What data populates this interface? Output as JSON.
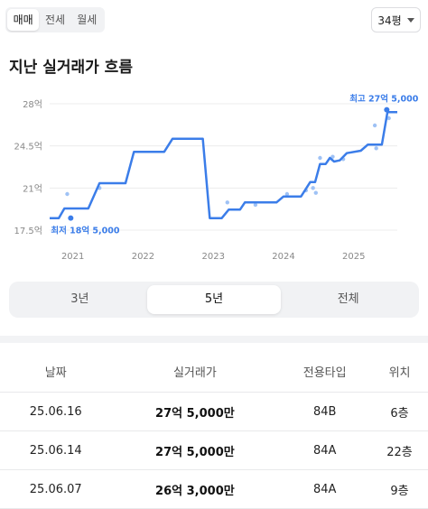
{
  "deal_tabs": [
    "매매",
    "전세",
    "월세"
  ],
  "active_deal_tab": 0,
  "size_select": {
    "value": "34평"
  },
  "section_title": "지난 실거래가 흐름",
  "chart_data": {
    "type": "line",
    "ylabels": [
      "28억",
      "24.5억",
      "21억",
      "17.5억"
    ],
    "yticks": [
      28,
      24.5,
      21,
      17.5
    ],
    "ylim": [
      17.5,
      28
    ],
    "xlabels": [
      "2021",
      "2022",
      "2023",
      "2024",
      "2025"
    ],
    "xticks": [
      2021,
      2022,
      2023,
      2024,
      2025
    ],
    "xlim": [
      2020.67,
      2025.62
    ],
    "grid": true,
    "line_color": "#3b7de9",
    "point_color": "#9fc2f5",
    "trend": [
      [
        2020.67,
        18.5
      ],
      [
        2020.8,
        18.5
      ],
      [
        2020.88,
        19.3
      ],
      [
        2021.22,
        19.3
      ],
      [
        2021.38,
        21.4
      ],
      [
        2021.75,
        21.4
      ],
      [
        2021.87,
        24.0
      ],
      [
        2022.3,
        24.0
      ],
      [
        2022.42,
        25.1
      ],
      [
        2022.85,
        25.1
      ],
      [
        2022.95,
        18.5
      ],
      [
        2023.12,
        18.5
      ],
      [
        2023.22,
        19.2
      ],
      [
        2023.38,
        19.2
      ],
      [
        2023.45,
        19.8
      ],
      [
        2023.9,
        19.8
      ],
      [
        2024.0,
        20.3
      ],
      [
        2024.25,
        20.3
      ],
      [
        2024.38,
        21.5
      ],
      [
        2024.45,
        21.5
      ],
      [
        2024.52,
        23.0
      ],
      [
        2024.6,
        23.0
      ],
      [
        2024.66,
        23.5
      ],
      [
        2024.72,
        23.2
      ],
      [
        2024.8,
        23.3
      ],
      [
        2024.9,
        23.9
      ],
      [
        2025.1,
        24.1
      ],
      [
        2025.2,
        24.6
      ],
      [
        2025.4,
        24.6
      ],
      [
        2025.48,
        27.3
      ],
      [
        2025.62,
        27.3
      ]
    ],
    "points": [
      [
        2020.92,
        20.5
      ],
      [
        2021.38,
        21.0
      ],
      [
        2023.2,
        19.8
      ],
      [
        2023.6,
        19.6
      ],
      [
        2024.05,
        20.5
      ],
      [
        2024.32,
        20.8
      ],
      [
        2024.42,
        21.0
      ],
      [
        2024.46,
        20.6
      ],
      [
        2024.52,
        23.5
      ],
      [
        2024.7,
        23.6
      ],
      [
        2024.85,
        23.4
      ],
      [
        2025.3,
        26.2
      ],
      [
        2025.32,
        24.3
      ],
      [
        2025.5,
        26.8
      ]
    ],
    "marked_points": [
      [
        2025.47,
        27.5
      ],
      [
        2020.97,
        18.5
      ]
    ],
    "annotations": [
      {
        "label": "최고 27억 5,000",
        "x": 2025.47,
        "y": 27.5
      },
      {
        "label": "최저 18억 5,000",
        "x": 2020.97,
        "y": 18.5
      }
    ]
  },
  "period_tabs": [
    "3년",
    "5년",
    "전체"
  ],
  "active_period_tab": 1,
  "table": {
    "headers": [
      "날짜",
      "실거래가",
      "전용타입",
      "위치"
    ],
    "rows": [
      [
        "25.06.16",
        "27억 5,000만",
        "84B",
        "6층"
      ],
      [
        "25.06.14",
        "27억 5,000만",
        "84A",
        "22층"
      ],
      [
        "25.06.07",
        "26억 3,000만",
        "84A",
        "9층"
      ]
    ]
  }
}
